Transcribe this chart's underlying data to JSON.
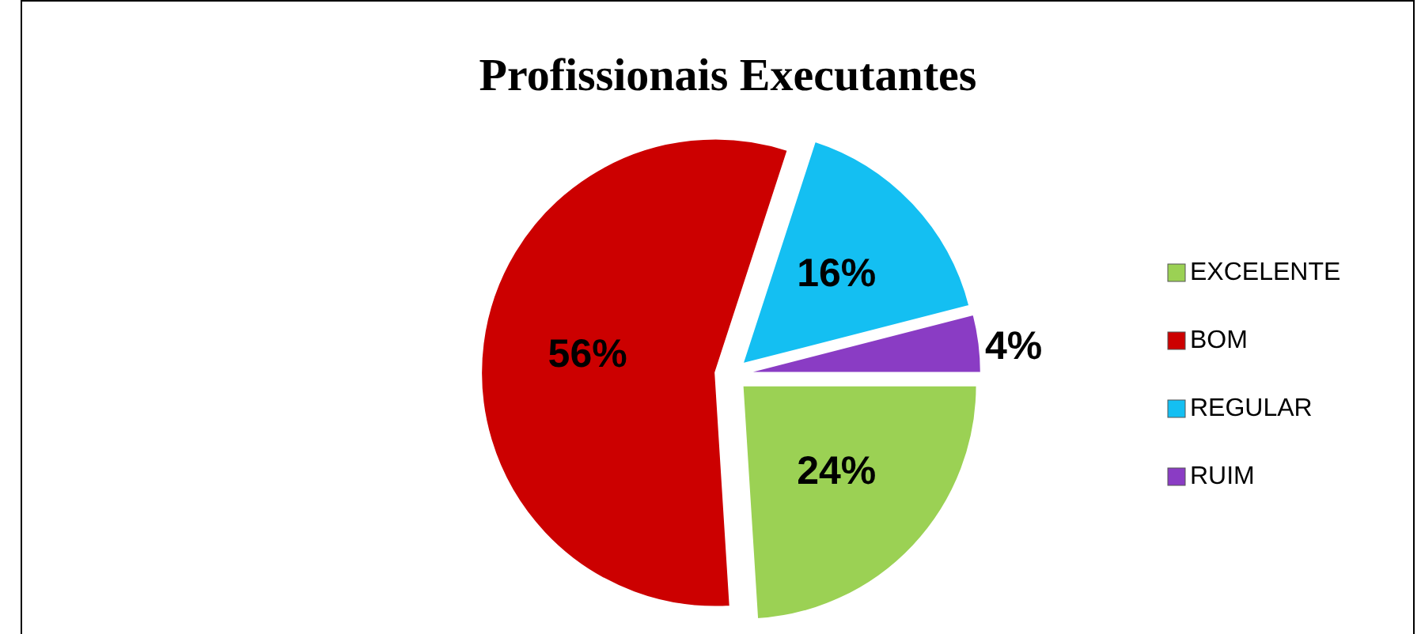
{
  "chart_data": {
    "type": "pie",
    "title": "Profissionais Executantes",
    "categories": [
      "EXCELENTE",
      "BOM",
      "REGULAR",
      "RUIM"
    ],
    "values": [
      24,
      56,
      16,
      4
    ],
    "value_labels": [
      "24%",
      "56%",
      "16%",
      "4%"
    ],
    "colors": [
      "#9bd154",
      "#cc0000",
      "#14bff2",
      "#8a3cc4"
    ],
    "legend": "right"
  }
}
